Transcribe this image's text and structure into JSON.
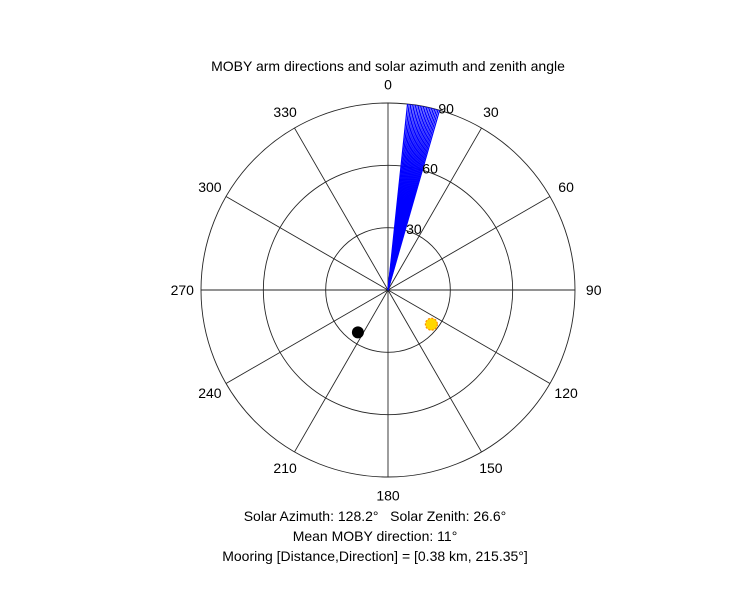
{
  "chart_data": {
    "type": "polar",
    "title": "MOBY arm directions and solar azimuth and zenith angle",
    "theta_zero": "top",
    "theta_direction": "clockwise",
    "theta_ticks": [
      "0",
      "30",
      "60",
      "90",
      "120",
      "150",
      "180",
      "210",
      "240",
      "270",
      "300",
      "330"
    ],
    "theta_tick_values": [
      0,
      30,
      60,
      90,
      120,
      150,
      180,
      210,
      240,
      270,
      300,
      330
    ],
    "r_ticks": [
      "30",
      "60",
      "90"
    ],
    "r_tick_values": [
      30,
      60,
      90
    ],
    "r_lim": [
      0,
      90
    ],
    "grid": true,
    "arm_lines": {
      "color": "#0000ff",
      "r": 90,
      "theta": [
        6.0,
        6.5,
        7.0,
        7.5,
        8.0,
        8.5,
        9.0,
        9.5,
        10.0,
        10.5,
        11.0,
        11.5,
        12.0,
        12.5,
        13.0,
        13.5,
        14.0,
        14.5,
        15.0,
        15.5,
        16.0
      ]
    },
    "sun_marker": {
      "theta": 128.2,
      "r": 26.6,
      "color": "#ffd700",
      "edge_color": "#ff8c00"
    },
    "mooring_marker": {
      "theta": 215.35,
      "r": 25,
      "color": "#000000"
    },
    "annotations": [
      "Solar Azimuth: 128.2°   Solar Zenith: 26.6°",
      "Mean MOBY direction: 11°",
      "Mooring [Distance,Direction] = [0.38 km, 215.35°]"
    ]
  }
}
